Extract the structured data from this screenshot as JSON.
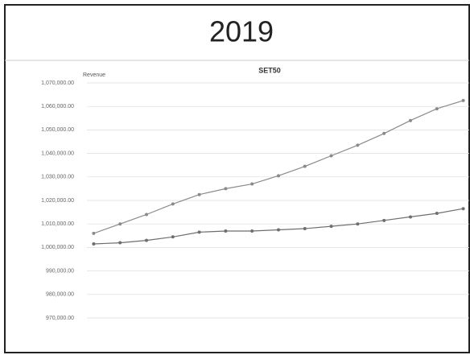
{
  "chart_data": {
    "type": "line",
    "header": "2019",
    "title": "SET50",
    "ylabel": "Revenue",
    "categories": [
      null,
      null,
      null,
      null,
      null,
      null,
      null,
      null,
      null,
      null,
      null,
      null,
      null,
      null,
      null
    ],
    "series": [
      {
        "color": "#8a8a8a",
        "values": [
          1006000,
          1010000,
          1014000,
          1018500,
          1022500,
          1025000,
          1027000,
          1030500,
          1034500,
          1039000,
          1043500,
          1048500,
          1054000,
          1059000,
          1062500
        ]
      },
      {
        "color": "#6e6e6e",
        "values": [
          1001500,
          1002000,
          1003000,
          1004500,
          1006500,
          1007000,
          1007000,
          1007500,
          1008000,
          1009000,
          1010000,
          1011500,
          1013000,
          1014500,
          1016500
        ]
      }
    ],
    "ylim": [
      970000,
      1070000
    ],
    "yticks": [
      {
        "value": 970000,
        "label": "970,000.00"
      },
      {
        "value": 980000,
        "label": "980,000.00"
      },
      {
        "value": 990000,
        "label": "990,000.00"
      },
      {
        "value": 1000000,
        "label": "1,000,000.00"
      },
      {
        "value": 1010000,
        "label": "1,010,000.00"
      },
      {
        "value": 1020000,
        "label": "1,020,000.00"
      },
      {
        "value": 1030000,
        "label": "1,030,000.00"
      },
      {
        "value": 1040000,
        "label": "1,040,000.00"
      },
      {
        "value": 1050000,
        "label": "1,050,000.00"
      },
      {
        "value": 1060000,
        "label": "1,060,000.00"
      },
      {
        "value": 1070000,
        "label": "1,070,000.00"
      }
    ],
    "grid": true
  }
}
